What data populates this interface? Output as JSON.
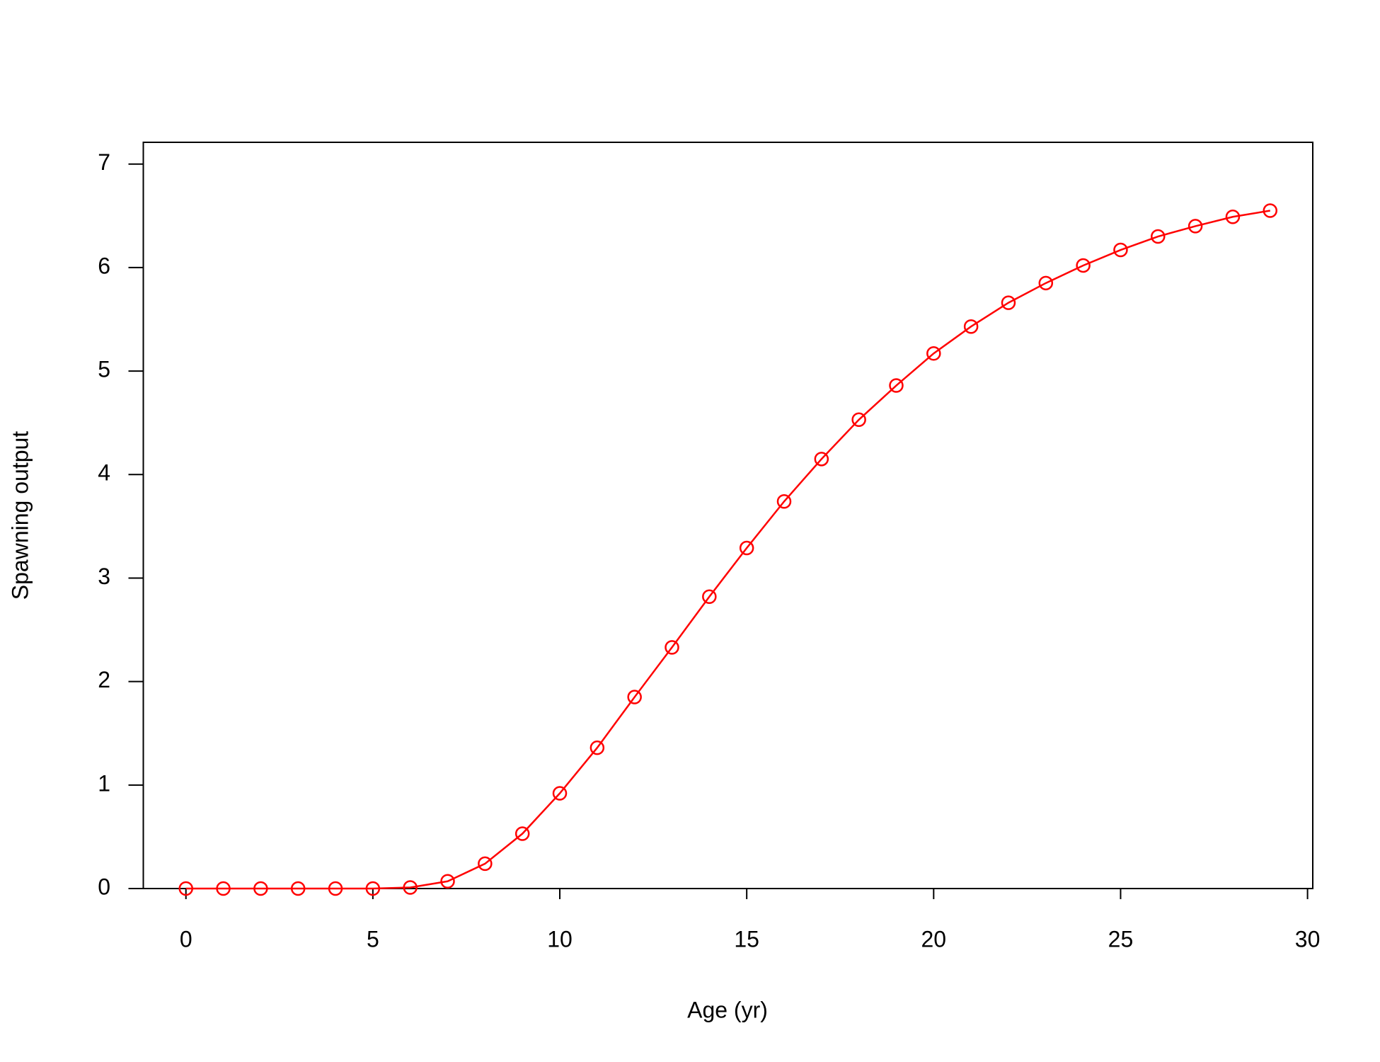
{
  "chart_data": {
    "type": "line",
    "x_label": "Age (yr)",
    "y_label": "Spawning output",
    "x": [
      0,
      1,
      2,
      3,
      4,
      5,
      6,
      7,
      8,
      9,
      10,
      11,
      12,
      13,
      14,
      15,
      16,
      17,
      18,
      19,
      20,
      21,
      22,
      23,
      24,
      25,
      26,
      27,
      28,
      29
    ],
    "values": [
      0,
      0,
      0,
      0,
      0,
      0,
      0.01,
      0.07,
      0.24,
      0.53,
      0.92,
      1.36,
      1.85,
      2.33,
      2.82,
      3.29,
      3.74,
      4.15,
      4.53,
      4.86,
      5.17,
      5.43,
      5.66,
      5.85,
      6.02,
      6.17,
      6.3,
      6.4,
      6.49,
      6.55
    ],
    "color": "#ff0000",
    "marker": "circle",
    "xlim": [
      -1.14,
      30.14
    ],
    "ylim": [
      0,
      7.21
    ],
    "xticks": [
      0,
      5,
      10,
      15,
      20,
      25,
      30
    ],
    "yticks": [
      0,
      1,
      2,
      3,
      4,
      5,
      6,
      7
    ]
  }
}
